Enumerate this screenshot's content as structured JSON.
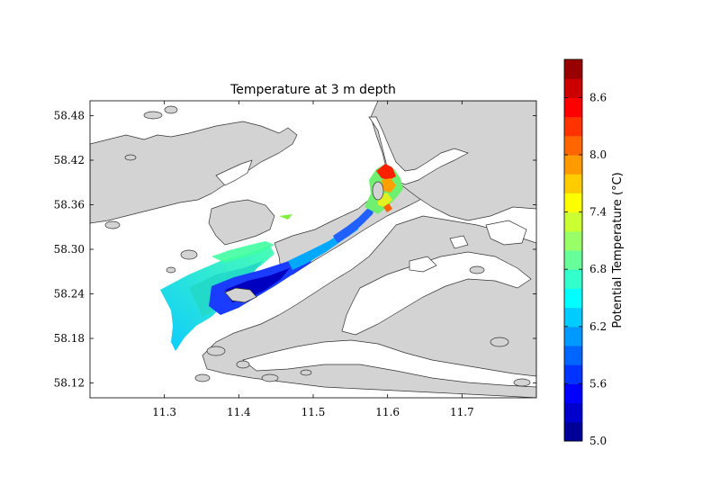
{
  "chart_data": {
    "type": "heatmap",
    "title": "Temperature at 3 m depth",
    "xlabel": "",
    "ylabel": "",
    "xlim": [
      11.2,
      11.8
    ],
    "ylim": [
      58.1,
      58.5
    ],
    "x_ticks": [
      "11.3",
      "11.4",
      "11.5",
      "11.6",
      "11.7"
    ],
    "y_ticks": [
      "58.48",
      "58.42",
      "58.36",
      "58.30",
      "58.24",
      "58.18",
      "58.12"
    ],
    "land_color": "#d3d3d3",
    "water_color": "#ffffff",
    "colorbar": {
      "label": "Potential Temperature (°C)",
      "range": [
        5.0,
        9.0
      ],
      "ticks": [
        "8.6",
        "8.0",
        "7.4",
        "6.8",
        "6.2",
        "5.6",
        "5.0"
      ],
      "levels": 20,
      "colormap": "jet"
    }
  }
}
